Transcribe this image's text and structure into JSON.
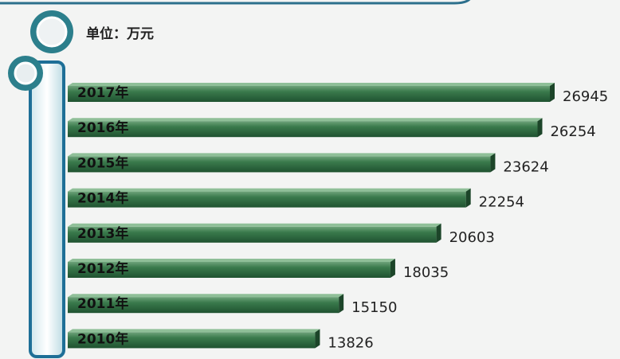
{
  "chart_data": {
    "type": "bar",
    "orientation": "horizontal",
    "unit": "单位：万元",
    "categories": [
      "2017年",
      "2016年",
      "2015年",
      "2014年",
      "2013年",
      "2012年",
      "2011年",
      "2010年"
    ],
    "values": [
      26945,
      26254,
      23624,
      22254,
      20603,
      18035,
      15150,
      13826
    ],
    "color": "#3a7a4c"
  }
}
